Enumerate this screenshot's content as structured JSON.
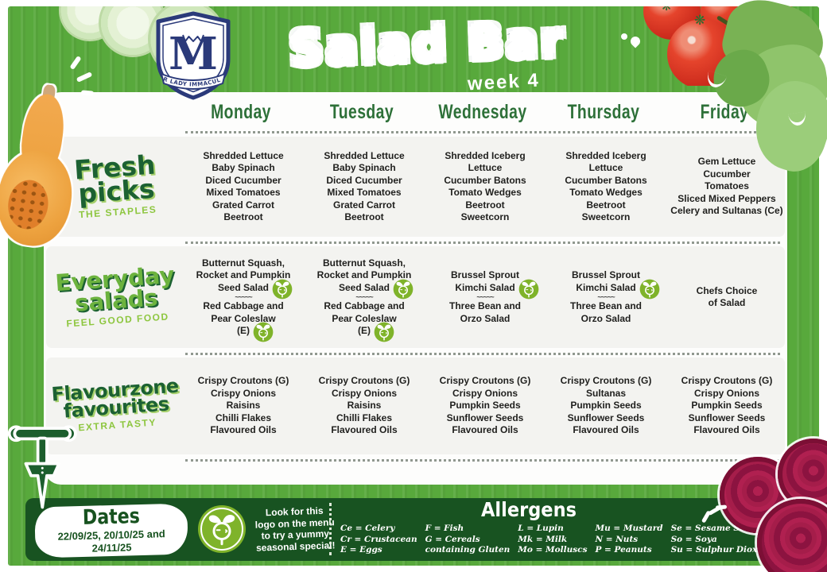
{
  "header": {
    "title": "Salad Bar",
    "week_label": "week 4",
    "crest_text": "OUR LADY IMMACULATE"
  },
  "table": {
    "days": [
      "Monday",
      "Tuesday",
      "Wednesday",
      "Thursday",
      "Friday"
    ],
    "rows": [
      {
        "title": "Fresh\npicks",
        "subtitle": "THE STAPLES",
        "cells": [
          [
            "Shredded Lettuce",
            "Baby Spinach",
            "Diced Cucumber",
            "Mixed Tomatoes",
            "Grated Carrot",
            "Beetroot"
          ],
          [
            "Shredded Lettuce",
            "Baby Spinach",
            "Diced Cucumber",
            "Mixed Tomatoes",
            "Grated Carrot",
            "Beetroot"
          ],
          [
            "Shredded Iceberg",
            "Lettuce",
            "Cucumber Batons",
            "Tomato Wedges",
            "Beetroot",
            "Sweetcorn"
          ],
          [
            "Shredded Iceberg",
            "Lettuce",
            "Cucumber Batons",
            "Tomato Wedges",
            "Beetroot",
            "Sweetcorn"
          ],
          [
            "Gem Lettuce",
            "Cucumber",
            "Tomatoes",
            "Sliced Mixed Peppers",
            "Celery and Sultanas *(Ce)*"
          ]
        ]
      },
      {
        "title": "Everyday\nsalads",
        "subtitle": "FEEL GOOD FOOD",
        "cells": [
          [
            "Butternut Squash,",
            "Rocket and Pumpkin",
            "Seed Salad [logo]",
            "~~~~~",
            "Red Cabbage and",
            "Pear Coleslaw",
            "*(E)* [logo]"
          ],
          [
            "Butternut Squash,",
            "Rocket and Pumpkin",
            "Seed Salad [logo]",
            "~~~~~",
            "Red Cabbage and",
            "Pear Coleslaw",
            "*(E)* [logo]"
          ],
          [
            "Brussel Sprout",
            "Kimchi Salad [logo]",
            "~~~~~",
            "Three Bean and",
            "Orzo Salad"
          ],
          [
            "Brussel Sprout",
            "Kimchi Salad [logo]",
            "~~~~~",
            "Three Bean and",
            "Orzo Salad"
          ],
          [
            "Chefs Choice",
            "of Salad"
          ]
        ]
      },
      {
        "title": "Flavourzone\nfavourites",
        "subtitle": "EXTRA TASTY",
        "cells": [
          [
            "Crispy Croutons *(G)*",
            "Crispy Onions",
            "Raisins",
            "Chilli Flakes",
            "Flavoured Oils"
          ],
          [
            "Crispy Croutons *(G)*",
            "Crispy Onions",
            "Raisins",
            "Chilli Flakes",
            "Flavoured Oils"
          ],
          [
            "Crispy Croutons *(G)*",
            "Crispy Onions",
            "Pumpkin Seeds",
            "Sunflower Seeds",
            "Flavoured Oils"
          ],
          [
            "Crispy Croutons *(G)*",
            "Sultanas",
            "Pumpkin Seeds",
            "Sunflower Seeds",
            "Flavoured Oils"
          ],
          [
            "Crispy Croutons *(G)*",
            "Crispy Onions",
            "Pumpkin Seeds",
            "Sunflower Seeds",
            "Flavoured Oils"
          ]
        ]
      }
    ]
  },
  "footer": {
    "dates_title": "Dates",
    "dates_text": "22/09/25, 20/10/25 and\n24/11/25",
    "logo_note": "Look for this\nlogo on the menu\nto try a yummy\nseasonal special!",
    "allergens_title": "Allergens",
    "allergen_columns": [
      [
        "Ce = Celery",
        "Cr = Crustacean",
        "E = Eggs"
      ],
      [
        "F = Fish",
        "G = Cereals",
        "containing Gluten"
      ],
      [
        "L = Lupin",
        "Mk = Milk",
        "Mo = Molluscs"
      ],
      [
        "Mu = Mustard",
        "N = Nuts",
        "P = Peanuts"
      ],
      [
        "Se = Sesame Seeds",
        "So = Soya",
        "Su = Sulphur Dioxide"
      ]
    ]
  },
  "icons": {
    "seasonal_special": "radish-icon",
    "crest": "school-crest-shield",
    "trowel": "garden-trowel"
  },
  "colors": {
    "page_green": "#58a93c",
    "footer_green": "#185321",
    "dark_green_text": "#1c6132",
    "light_green": "#8dc63f",
    "bright_green": "#6cb33e",
    "logo_green": "#7fb32a",
    "crest_navy": "#2b3a7a",
    "tomato_red": "#d93a22",
    "beetroot": "#8c1340"
  }
}
